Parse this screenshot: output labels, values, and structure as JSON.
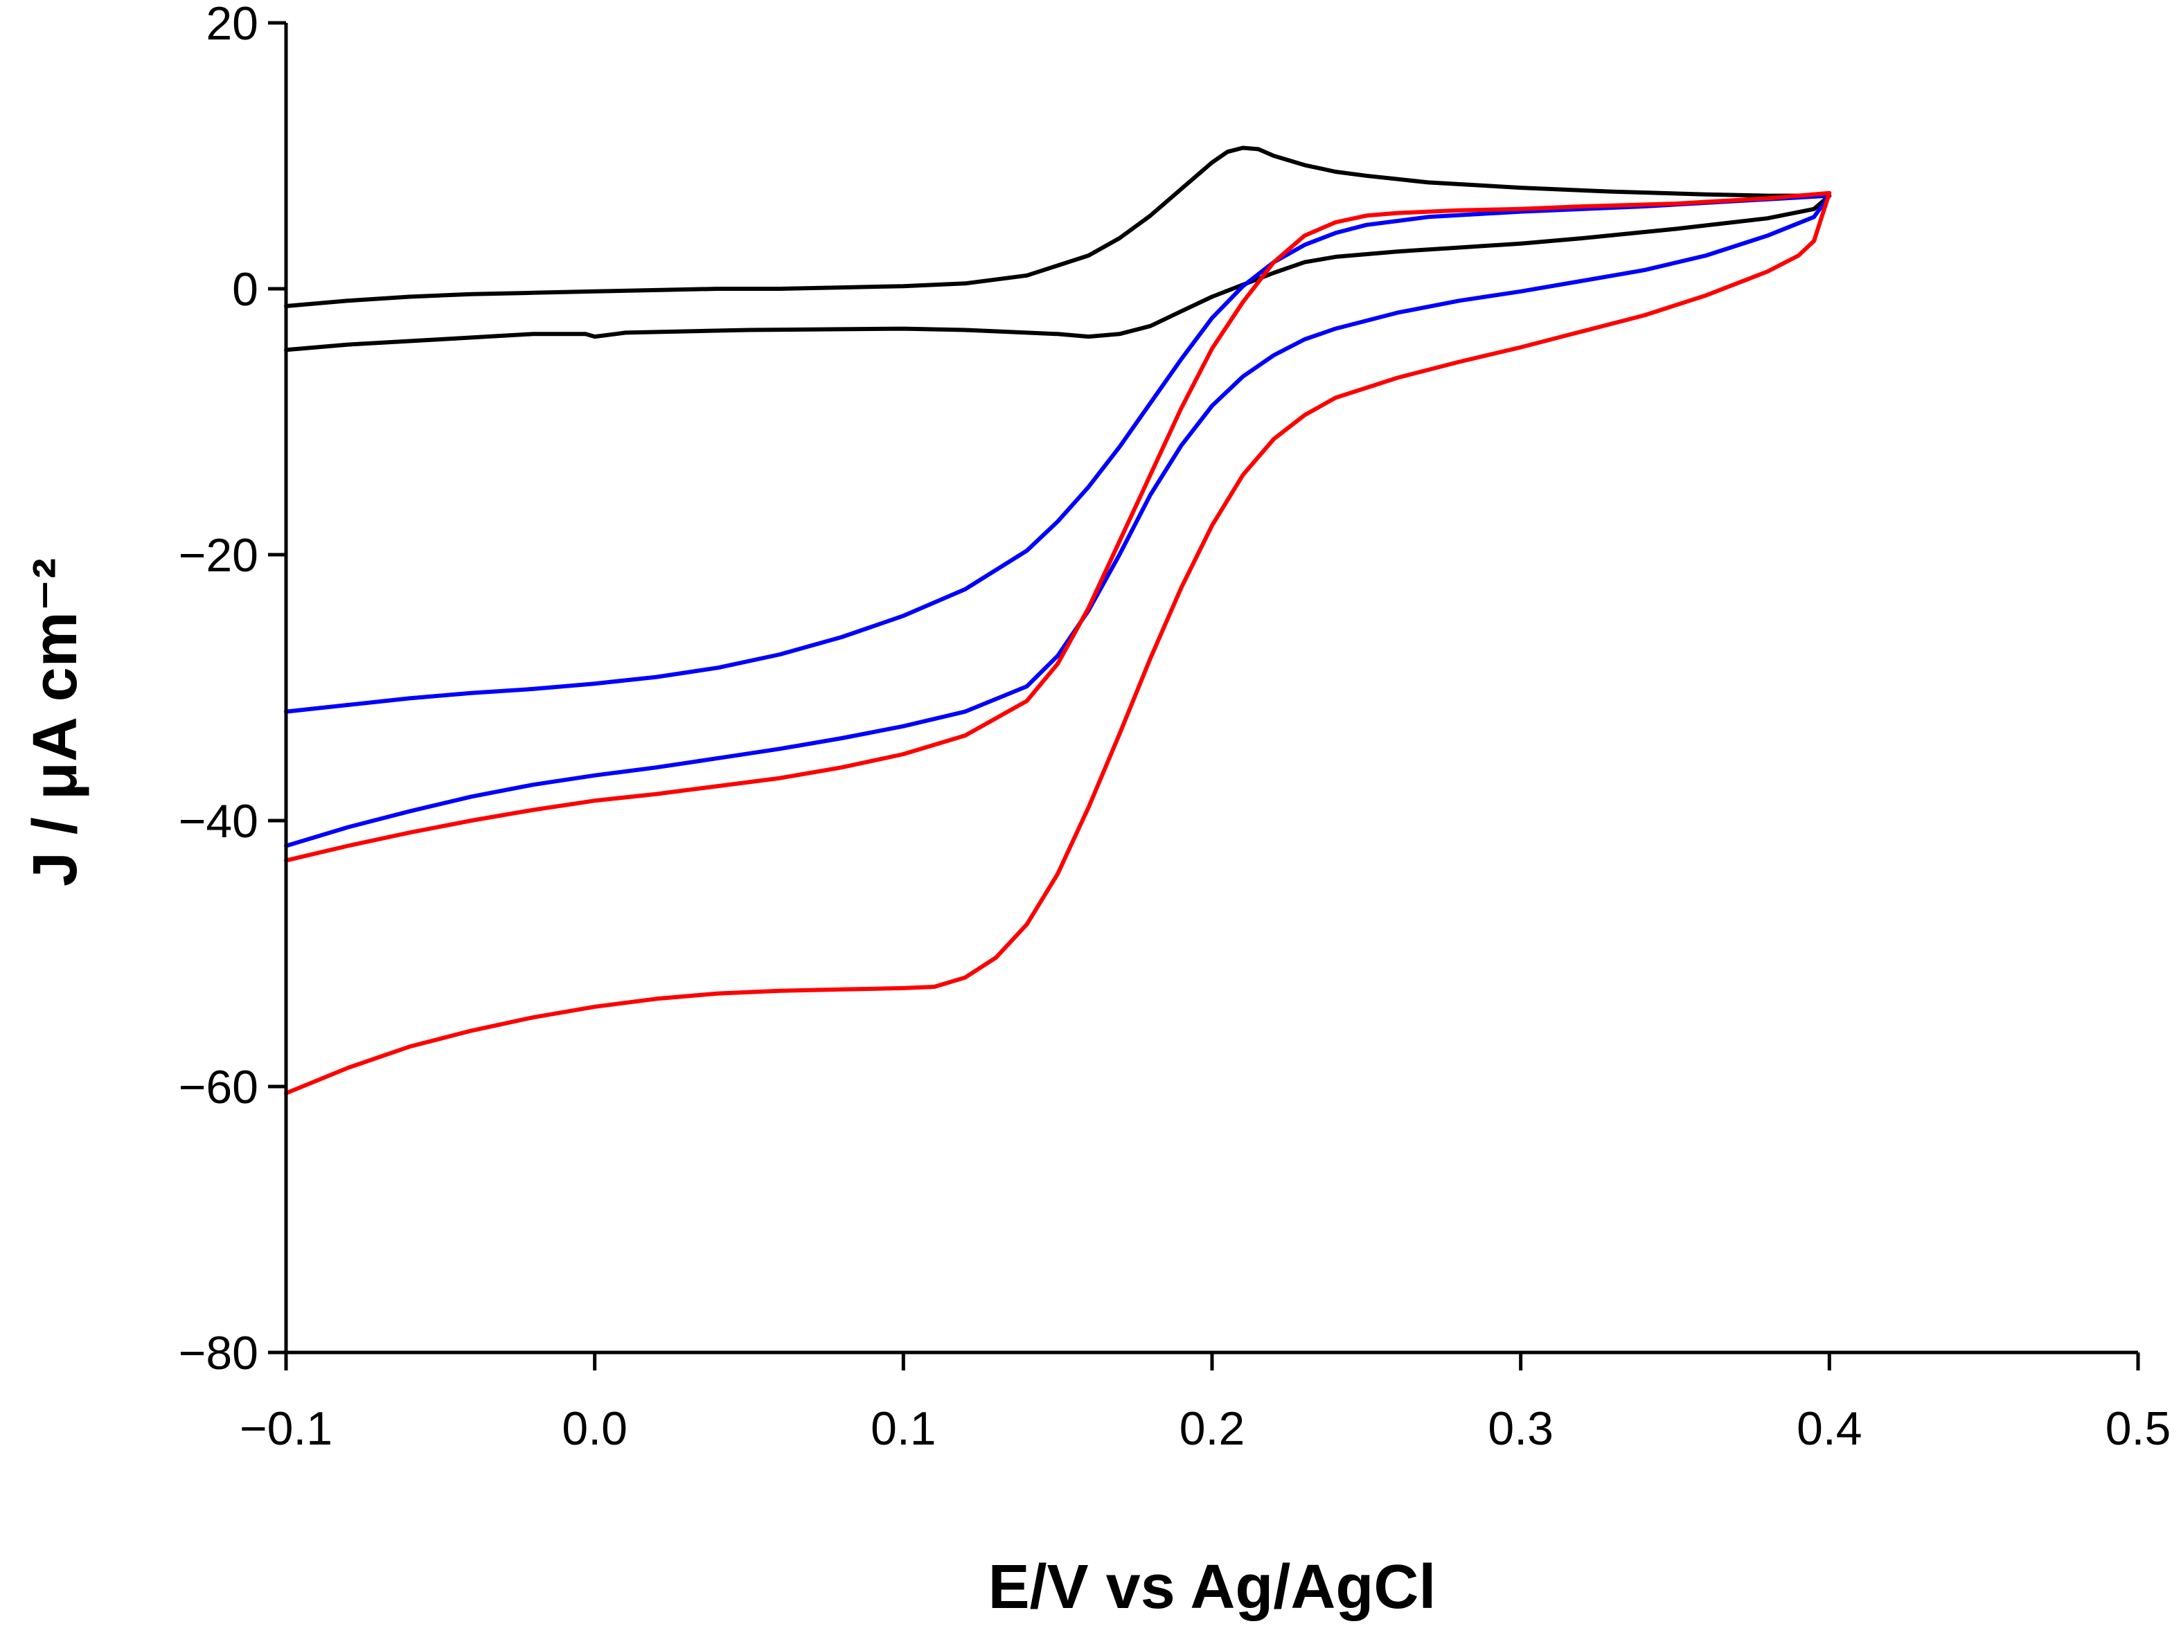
{
  "chart_data": {
    "type": "line",
    "title": "",
    "xlabel": "E/V vs Ag/AgCl",
    "ylabel": "J / μA cm⁻²",
    "xlim": [
      -0.1,
      0.5
    ],
    "ylim": [
      -80,
      20
    ],
    "xticks": [
      -0.1,
      0.0,
      0.1,
      0.2,
      0.3,
      0.4,
      0.5
    ],
    "xtick_labels": [
      "−0.1",
      "0.0",
      "0.1",
      "0.2",
      "0.3",
      "0.4",
      "0.5"
    ],
    "yticks": [
      -80,
      -60,
      -40,
      -20,
      0,
      20
    ],
    "ytick_labels": [
      "−80",
      "−60",
      "−40",
      "−20",
      "0",
      "20"
    ],
    "grid": false,
    "legend": "none",
    "series": [
      {
        "name": "black",
        "color": "#000000",
        "points": [
          [
            -0.1,
            -1.3
          ],
          [
            -0.08,
            -0.9
          ],
          [
            -0.06,
            -0.6
          ],
          [
            -0.04,
            -0.4
          ],
          [
            -0.02,
            -0.3
          ],
          [
            0.0,
            -0.2
          ],
          [
            0.02,
            -0.1
          ],
          [
            0.04,
            0.0
          ],
          [
            0.06,
            0.0
          ],
          [
            0.08,
            0.1
          ],
          [
            0.1,
            0.2
          ],
          [
            0.12,
            0.4
          ],
          [
            0.14,
            1.0
          ],
          [
            0.16,
            2.5
          ],
          [
            0.17,
            3.8
          ],
          [
            0.18,
            5.5
          ],
          [
            0.19,
            7.5
          ],
          [
            0.2,
            9.5
          ],
          [
            0.205,
            10.3
          ],
          [
            0.21,
            10.6
          ],
          [
            0.215,
            10.5
          ],
          [
            0.22,
            10.0
          ],
          [
            0.23,
            9.3
          ],
          [
            0.24,
            8.8
          ],
          [
            0.25,
            8.5
          ],
          [
            0.27,
            8.0
          ],
          [
            0.3,
            7.6
          ],
          [
            0.33,
            7.3
          ],
          [
            0.36,
            7.1
          ],
          [
            0.38,
            7.0
          ],
          [
            0.4,
            7.0
          ],
          [
            0.395,
            6.0
          ],
          [
            0.38,
            5.3
          ],
          [
            0.35,
            4.5
          ],
          [
            0.32,
            3.8
          ],
          [
            0.3,
            3.4
          ],
          [
            0.28,
            3.1
          ],
          [
            0.26,
            2.8
          ],
          [
            0.24,
            2.4
          ],
          [
            0.23,
            2.0
          ],
          [
            0.22,
            1.2
          ],
          [
            0.21,
            0.3
          ],
          [
            0.2,
            -0.6
          ],
          [
            0.19,
            -1.7
          ],
          [
            0.18,
            -2.8
          ],
          [
            0.17,
            -3.4
          ],
          [
            0.16,
            -3.6
          ],
          [
            0.15,
            -3.4
          ],
          [
            0.12,
            -3.1
          ],
          [
            0.1,
            -3.0
          ],
          [
            0.05,
            -3.1
          ],
          [
            0.01,
            -3.3
          ],
          [
            0.0,
            -3.6
          ],
          [
            -0.003,
            -3.4
          ],
          [
            -0.02,
            -3.4
          ],
          [
            -0.05,
            -3.8
          ],
          [
            -0.08,
            -4.2
          ],
          [
            -0.1,
            -4.6
          ]
        ]
      },
      {
        "name": "blue",
        "color": "#0000ff",
        "points": [
          [
            -0.1,
            -31.8
          ],
          [
            -0.08,
            -31.3
          ],
          [
            -0.06,
            -30.8
          ],
          [
            -0.04,
            -30.4
          ],
          [
            -0.02,
            -30.1
          ],
          [
            0.0,
            -29.7
          ],
          [
            0.02,
            -29.2
          ],
          [
            0.04,
            -28.5
          ],
          [
            0.06,
            -27.5
          ],
          [
            0.08,
            -26.2
          ],
          [
            0.1,
            -24.6
          ],
          [
            0.12,
            -22.6
          ],
          [
            0.14,
            -19.7
          ],
          [
            0.15,
            -17.5
          ],
          [
            0.16,
            -14.9
          ],
          [
            0.17,
            -11.9
          ],
          [
            0.18,
            -8.6
          ],
          [
            0.19,
            -5.3
          ],
          [
            0.2,
            -2.2
          ],
          [
            0.21,
            0.2
          ],
          [
            0.22,
            2.0
          ],
          [
            0.23,
            3.3
          ],
          [
            0.24,
            4.2
          ],
          [
            0.25,
            4.8
          ],
          [
            0.27,
            5.4
          ],
          [
            0.3,
            5.8
          ],
          [
            0.34,
            6.2
          ],
          [
            0.37,
            6.6
          ],
          [
            0.4,
            7.0
          ],
          [
            0.395,
            5.4
          ],
          [
            0.38,
            4.0
          ],
          [
            0.36,
            2.5
          ],
          [
            0.34,
            1.4
          ],
          [
            0.32,
            0.6
          ],
          [
            0.3,
            -0.2
          ],
          [
            0.28,
            -0.9
          ],
          [
            0.26,
            -1.8
          ],
          [
            0.24,
            -3.0
          ],
          [
            0.23,
            -3.8
          ],
          [
            0.22,
            -5.0
          ],
          [
            0.21,
            -6.6
          ],
          [
            0.2,
            -8.8
          ],
          [
            0.19,
            -11.8
          ],
          [
            0.18,
            -15.5
          ],
          [
            0.17,
            -20.0
          ],
          [
            0.16,
            -24.2
          ],
          [
            0.15,
            -27.6
          ],
          [
            0.14,
            -29.9
          ],
          [
            0.12,
            -31.8
          ],
          [
            0.1,
            -32.9
          ],
          [
            0.08,
            -33.8
          ],
          [
            0.06,
            -34.6
          ],
          [
            0.04,
            -35.3
          ],
          [
            0.02,
            -36.0
          ],
          [
            0.0,
            -36.6
          ],
          [
            -0.02,
            -37.3
          ],
          [
            -0.04,
            -38.2
          ],
          [
            -0.06,
            -39.3
          ],
          [
            -0.08,
            -40.5
          ],
          [
            -0.1,
            -41.9
          ]
        ]
      },
      {
        "name": "red",
        "color": "#ff0000",
        "points": [
          [
            -0.1,
            -60.5
          ],
          [
            -0.08,
            -58.6
          ],
          [
            -0.06,
            -57.0
          ],
          [
            -0.04,
            -55.8
          ],
          [
            -0.02,
            -54.8
          ],
          [
            0.0,
            -54.0
          ],
          [
            0.02,
            -53.4
          ],
          [
            0.04,
            -53.0
          ],
          [
            0.06,
            -52.8
          ],
          [
            0.08,
            -52.7
          ],
          [
            0.1,
            -52.6
          ],
          [
            0.11,
            -52.5
          ],
          [
            0.12,
            -51.8
          ],
          [
            0.13,
            -50.3
          ],
          [
            0.14,
            -47.8
          ],
          [
            0.15,
            -44.0
          ],
          [
            0.16,
            -39.0
          ],
          [
            0.17,
            -33.5
          ],
          [
            0.18,
            -27.8
          ],
          [
            0.19,
            -22.5
          ],
          [
            0.2,
            -17.8
          ],
          [
            0.21,
            -14.0
          ],
          [
            0.22,
            -11.3
          ],
          [
            0.23,
            -9.5
          ],
          [
            0.24,
            -8.2
          ],
          [
            0.26,
            -6.7
          ],
          [
            0.28,
            -5.5
          ],
          [
            0.3,
            -4.4
          ],
          [
            0.32,
            -3.2
          ],
          [
            0.34,
            -2.0
          ],
          [
            0.36,
            -0.5
          ],
          [
            0.38,
            1.3
          ],
          [
            0.39,
            2.5
          ],
          [
            0.395,
            3.6
          ],
          [
            0.4,
            7.2
          ],
          [
            0.38,
            6.8
          ],
          [
            0.35,
            6.4
          ],
          [
            0.32,
            6.2
          ],
          [
            0.3,
            6.0
          ],
          [
            0.28,
            5.9
          ],
          [
            0.26,
            5.7
          ],
          [
            0.25,
            5.5
          ],
          [
            0.24,
            5.0
          ],
          [
            0.23,
            4.0
          ],
          [
            0.22,
            2.0
          ],
          [
            0.21,
            -1.0
          ],
          [
            0.2,
            -4.5
          ],
          [
            0.19,
            -9.0
          ],
          [
            0.18,
            -14.0
          ],
          [
            0.17,
            -19.0
          ],
          [
            0.16,
            -24.0
          ],
          [
            0.15,
            -28.2
          ],
          [
            0.14,
            -31.0
          ],
          [
            0.12,
            -33.6
          ],
          [
            0.1,
            -35.0
          ],
          [
            0.08,
            -36.0
          ],
          [
            0.06,
            -36.8
          ],
          [
            0.04,
            -37.4
          ],
          [
            0.02,
            -38.0
          ],
          [
            0.0,
            -38.5
          ],
          [
            -0.02,
            -39.2
          ],
          [
            -0.04,
            -40.0
          ],
          [
            -0.06,
            -40.9
          ],
          [
            -0.08,
            -41.9
          ],
          [
            -0.1,
            -43.0
          ]
        ]
      }
    ]
  }
}
